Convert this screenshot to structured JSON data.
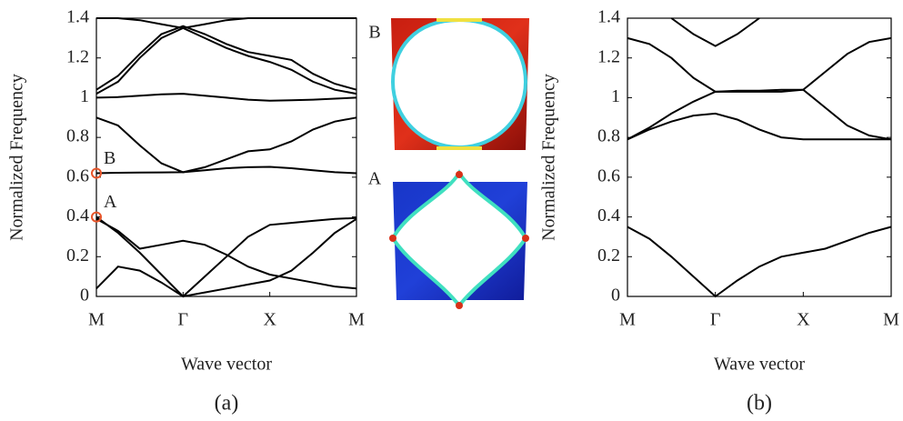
{
  "chart_data": [
    {
      "type": "line",
      "xlabel": "Wave vector",
      "ylabel": "Normalized Frequency",
      "caption": "(a)",
      "x": [
        0,
        0.25,
        0.5,
        0.75,
        1,
        1.25,
        1.5,
        1.75,
        2,
        2.25,
        2.5,
        2.75,
        3
      ],
      "xlim": [
        0,
        3
      ],
      "ylim": [
        0,
        1.4
      ],
      "xticks": [
        {
          "value": 0,
          "label": "M"
        },
        {
          "value": 1,
          "label": "Γ"
        },
        {
          "value": 2,
          "label": "X"
        },
        {
          "value": 3,
          "label": "M"
        }
      ],
      "yticks": [
        0,
        0.2,
        0.4,
        0.6,
        0.8,
        1,
        1.2,
        1.4
      ],
      "series": [
        {
          "color": "#000000",
          "values": [
            0.04,
            0.15,
            0.13,
            0.07,
            0,
            0.02,
            0.04,
            0.06,
            0.08,
            0.13,
            0.22,
            0.32,
            0.39
          ]
        },
        {
          "color": "#000000",
          "values": [
            0.39,
            0.33,
            0.24,
            0.26,
            0.28,
            0.26,
            0.21,
            0.15,
            0.11,
            0.09,
            0.07,
            0.05,
            0.04
          ]
        },
        {
          "color": "#000000",
          "values": [
            0.4,
            0.32,
            0.22,
            0.11,
            0,
            0.1,
            0.2,
            0.3,
            0.36,
            0.37,
            0.38,
            0.39,
            0.395
          ]
        },
        {
          "color": "#000000",
          "values": [
            0.62,
            0.622,
            0.623,
            0.624,
            0.625,
            0.635,
            0.645,
            0.65,
            0.652,
            0.645,
            0.635,
            0.625,
            0.62
          ]
        },
        {
          "color": "#000000",
          "values": [
            0.9,
            0.86,
            0.76,
            0.67,
            0.625,
            0.65,
            0.69,
            0.73,
            0.74,
            0.78,
            0.84,
            0.88,
            0.9
          ]
        },
        {
          "color": "#000000",
          "values": [
            1.0,
            1.003,
            1.01,
            1.017,
            1.02,
            1.01,
            1.0,
            0.99,
            0.985,
            0.987,
            0.99,
            0.995,
            1.0
          ]
        },
        {
          "color": "#000000",
          "values": [
            1.02,
            1.08,
            1.2,
            1.3,
            1.35,
            1.3,
            1.25,
            1.21,
            1.18,
            1.14,
            1.08,
            1.04,
            1.02
          ]
        },
        {
          "color": "#000000",
          "values": [
            1.04,
            1.11,
            1.22,
            1.32,
            1.36,
            1.32,
            1.27,
            1.23,
            1.21,
            1.19,
            1.12,
            1.07,
            1.04
          ]
        },
        {
          "color": "#000000",
          "values": [
            1.4,
            1.4,
            1.39,
            1.37,
            1.35,
            1.37,
            1.39,
            1.4,
            1.4,
            1.4,
            1.4,
            1.4,
            1.4
          ]
        }
      ],
      "markers": [
        {
          "label": "A",
          "x": 0,
          "y": 0.4,
          "color": "#e8552a"
        },
        {
          "label": "B",
          "x": 0,
          "y": 0.62,
          "color": "#e8552a"
        }
      ]
    },
    {
      "type": "line",
      "xlabel": "Wave vector",
      "ylabel": "Normalized Frequency",
      "caption": "(b)",
      "x": [
        0,
        0.25,
        0.5,
        0.75,
        1,
        1.25,
        1.5,
        1.75,
        2,
        2.25,
        2.5,
        2.75,
        3
      ],
      "xlim": [
        0,
        3
      ],
      "ylim": [
        0,
        1.4
      ],
      "xticks": [
        {
          "value": 0,
          "label": "M"
        },
        {
          "value": 1,
          "label": "Γ"
        },
        {
          "value": 2,
          "label": "X"
        },
        {
          "value": 3,
          "label": "M"
        }
      ],
      "yticks": [
        0,
        0.2,
        0.4,
        0.6,
        0.8,
        1,
        1.2,
        1.4
      ],
      "series": [
        {
          "color": "#000000",
          "values": [
            0.35,
            0.29,
            0.2,
            0.1,
            0,
            0.08,
            0.15,
            0.2,
            0.22,
            0.24,
            0.28,
            0.32,
            0.35
          ]
        },
        {
          "color": "#000000",
          "values": [
            0.79,
            0.84,
            0.88,
            0.91,
            0.92,
            0.89,
            0.84,
            0.8,
            0.79,
            0.79,
            0.79,
            0.79,
            0.79
          ]
        },
        {
          "color": "#000000",
          "values": [
            0.79,
            0.85,
            0.92,
            0.98,
            1.03,
            1.035,
            1.035,
            1.04,
            1.04,
            0.95,
            0.86,
            0.81,
            0.79
          ]
        },
        {
          "color": "#000000",
          "values": [
            1.3,
            1.27,
            1.2,
            1.1,
            1.03,
            1.03,
            1.03,
            1.03,
            1.04,
            1.13,
            1.22,
            1.28,
            1.3
          ]
        },
        {
          "color": "#000000",
          "values": [
            null,
            null,
            1.4,
            1.32,
            1.26,
            1.32,
            1.4,
            null,
            null,
            null,
            null,
            null,
            null
          ]
        }
      ]
    }
  ],
  "mode_shapes": [
    {
      "label": "B"
    },
    {
      "label": "A"
    }
  ]
}
